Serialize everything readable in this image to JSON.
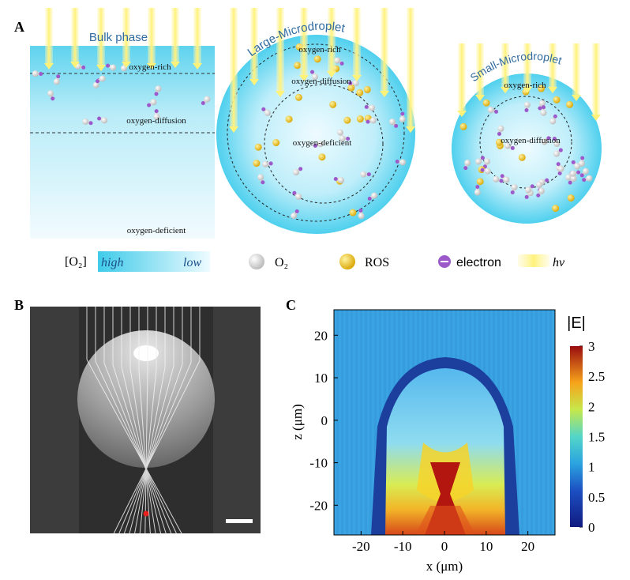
{
  "panel_a": {
    "label": "A",
    "bulk": {
      "title": "Bulk phase",
      "zones": [
        "oxygen-rich",
        "oxygen-diffusion",
        "oxygen-deficient"
      ]
    },
    "large": {
      "title": "Large-Microdroplet",
      "zones": [
        "oxygen-rich",
        "oxygen-diffusion",
        "oxygen-deficient"
      ]
    },
    "small": {
      "title": "Small-Microdroplet",
      "zones": [
        "oxygen-rich",
        "oxygen-diffusion"
      ]
    },
    "legend": {
      "o2_label": "[O₂]",
      "high": "high",
      "low": "low",
      "items": [
        "O₂",
        "ROS",
        "electron",
        "hν"
      ]
    }
  },
  "panel_b": {
    "label": "B"
  },
  "panel_c": {
    "label": "C",
    "xlabel": "x (μm)",
    "ylabel": "z (μm)",
    "colorbar_title": "|E|",
    "xlim": [
      -26.5,
      26.5
    ],
    "xticks": [
      -20,
      -10,
      0,
      10,
      20
    ],
    "ylim": [
      -27,
      26
    ],
    "yticks": [
      20,
      10,
      0,
      -10,
      -20
    ],
    "clim": [
      0,
      3
    ],
    "cticks": [
      0,
      0.5,
      1,
      1.5,
      2,
      2.5,
      3
    ]
  }
}
